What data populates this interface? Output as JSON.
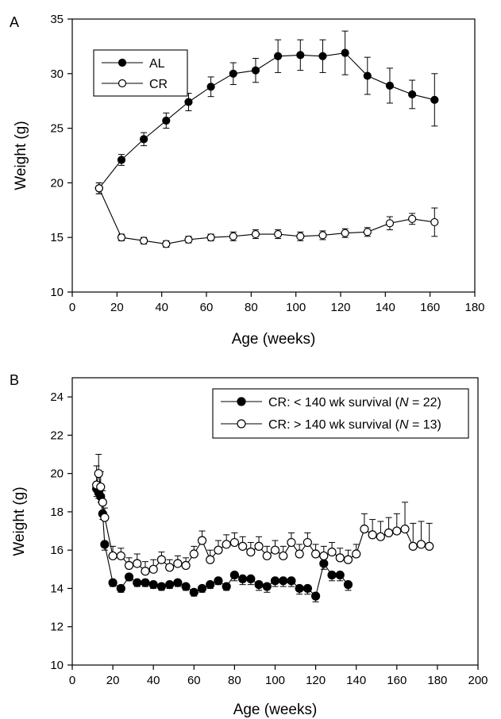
{
  "colors": {
    "ink": "#000000",
    "paper": "#ffffff"
  },
  "chart_data": [
    {
      "type": "line",
      "panel_label": "A",
      "title": "",
      "xlabel": "Age (weeks)",
      "ylabel": "Weight (g)",
      "xlim": [
        0,
        180
      ],
      "ylim": [
        10,
        35
      ],
      "xticks": [
        0,
        20,
        40,
        60,
        80,
        100,
        120,
        140,
        160,
        180
      ],
      "yticks": [
        10,
        15,
        20,
        25,
        30,
        35
      ],
      "grid": false,
      "legend_position": "top-left",
      "series": [
        {
          "name": "AL",
          "marker": "filled-circle",
          "x": [
            12,
            22,
            32,
            42,
            52,
            62,
            72,
            82,
            92,
            102,
            112,
            122,
            132,
            142,
            152,
            162
          ],
          "y": [
            19.5,
            22.1,
            24.0,
            25.7,
            27.4,
            28.8,
            30.0,
            30.3,
            31.6,
            31.7,
            31.6,
            31.9,
            29.8,
            28.9,
            28.1,
            27.6
          ],
          "error": [
            0.5,
            0.5,
            0.6,
            0.7,
            0.8,
            0.9,
            1.0,
            1.1,
            1.5,
            1.4,
            1.5,
            2.0,
            1.7,
            1.6,
            1.3,
            2.4
          ]
        },
        {
          "name": "CR",
          "marker": "open-circle",
          "x": [
            12,
            22,
            32,
            42,
            52,
            62,
            72,
            82,
            92,
            102,
            112,
            122,
            132,
            142,
            152,
            162
          ],
          "y": [
            19.5,
            15.0,
            14.7,
            14.4,
            14.8,
            15.0,
            15.1,
            15.3,
            15.3,
            15.1,
            15.2,
            15.4,
            15.5,
            16.3,
            16.7,
            16.4
          ],
          "error": [
            0.5,
            0.3,
            0.3,
            0.3,
            0.3,
            0.3,
            0.4,
            0.4,
            0.4,
            0.4,
            0.4,
            0.4,
            0.4,
            0.6,
            0.5,
            1.3
          ]
        }
      ]
    },
    {
      "type": "line",
      "panel_label": "B",
      "title": "",
      "xlabel": "Age (weeks)",
      "ylabel": "Weight (g)",
      "xlim": [
        0,
        200
      ],
      "ylim": [
        10,
        25
      ],
      "xticks": [
        0,
        20,
        40,
        60,
        80,
        100,
        120,
        140,
        160,
        180,
        200
      ],
      "yticks": [
        10,
        12,
        14,
        16,
        18,
        20,
        22,
        24
      ],
      "grid": false,
      "legend_position": "top-right",
      "series": [
        {
          "name": "CR: < 140 wk survival (N = 22)",
          "name_parts": [
            "CR: < 140 wk survival (",
            "N",
            " = 22)"
          ],
          "marker": "filled-circle",
          "x": [
            12,
            13,
            14,
            15,
            16,
            20,
            24,
            28,
            32,
            36,
            40,
            44,
            48,
            52,
            56,
            60,
            64,
            68,
            72,
            76,
            80,
            84,
            88,
            92,
            96,
            100,
            104,
            108,
            112,
            116,
            120,
            124,
            128,
            132,
            136
          ],
          "y": [
            19.2,
            19.0,
            18.8,
            17.9,
            16.3,
            14.3,
            14.0,
            14.6,
            14.3,
            14.3,
            14.2,
            14.1,
            14.2,
            14.3,
            14.1,
            13.8,
            14.0,
            14.2,
            14.4,
            14.1,
            14.7,
            14.5,
            14.5,
            14.2,
            14.1,
            14.4,
            14.4,
            14.4,
            14.0,
            14.0,
            13.6,
            15.3,
            14.7,
            14.7,
            14.2
          ],
          "error": [
            0.4,
            0.3,
            0.3,
            0.3,
            0.3,
            0.2,
            0.2,
            0.2,
            0.2,
            0.2,
            0.2,
            0.2,
            0.2,
            0.2,
            0.2,
            0.2,
            0.2,
            0.2,
            0.2,
            0.2,
            0.3,
            0.3,
            0.3,
            0.3,
            0.3,
            0.3,
            0.3,
            0.3,
            0.3,
            0.3,
            0.3,
            0.3,
            0.3,
            0.3,
            0.3
          ]
        },
        {
          "name": "CR: > 140 wk survival (N = 13)",
          "name_parts": [
            "CR: > 140 wk survival (",
            "N",
            " = 13)"
          ],
          "marker": "open-circle",
          "x": [
            12,
            13,
            14,
            15,
            16,
            20,
            24,
            28,
            32,
            36,
            40,
            44,
            48,
            52,
            56,
            60,
            64,
            68,
            72,
            76,
            80,
            84,
            88,
            92,
            96,
            100,
            104,
            108,
            112,
            116,
            120,
            124,
            128,
            132,
            136,
            140,
            144,
            148,
            152,
            156,
            160,
            164,
            168,
            172,
            176
          ],
          "y": [
            19.4,
            20.0,
            19.3,
            18.5,
            17.7,
            15.7,
            15.7,
            15.2,
            15.3,
            14.9,
            15.0,
            15.5,
            15.1,
            15.3,
            15.2,
            15.8,
            16.5,
            15.5,
            16.0,
            16.3,
            16.4,
            16.2,
            15.9,
            16.2,
            15.7,
            16.0,
            15.7,
            16.4,
            15.8,
            16.4,
            15.8,
            15.7,
            15.9,
            15.6,
            15.5,
            15.8,
            17.1,
            16.8,
            16.7,
            16.9,
            17.0,
            17.1,
            16.2,
            16.3,
            16.2
          ],
          "error": [
            1.0,
            1.0,
            0.8,
            0.6,
            0.5,
            0.5,
            0.4,
            0.4,
            0.5,
            0.5,
            0.5,
            0.4,
            0.4,
            0.4,
            0.4,
            0.4,
            0.5,
            0.5,
            0.5,
            0.5,
            0.5,
            0.5,
            0.5,
            0.5,
            0.5,
            0.5,
            0.5,
            0.5,
            0.5,
            0.5,
            0.5,
            0.5,
            0.5,
            0.5,
            0.5,
            0.5,
            0.8,
            0.8,
            0.8,
            0.8,
            0.9,
            1.4,
            1.2,
            1.2,
            1.2
          ]
        }
      ]
    }
  ]
}
